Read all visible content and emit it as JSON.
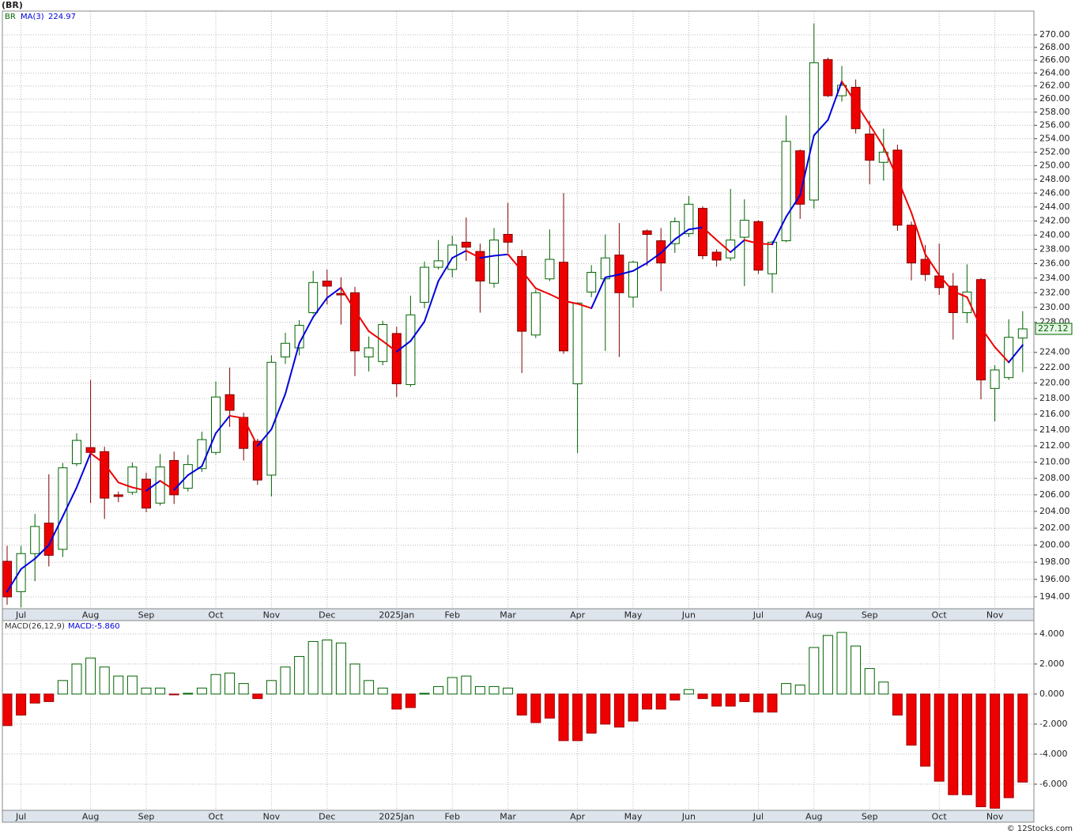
{
  "title": "(BR)",
  "footer": "© 12Stocks.com",
  "chart_data": [
    {
      "type": "candlestick",
      "symbol": "BR",
      "categories": [
        null,
        "Jul",
        null,
        null,
        null,
        null,
        "Aug",
        null,
        null,
        null,
        "Sep",
        null,
        null,
        null,
        null,
        "Oct",
        null,
        null,
        null,
        "Nov",
        null,
        null,
        null,
        "Dec",
        null,
        null,
        null,
        null,
        "2025Jan",
        null,
        null,
        null,
        "Feb",
        null,
        null,
        null,
        "Mar",
        null,
        null,
        null,
        null,
        "Apr",
        null,
        null,
        null,
        "May",
        null,
        null,
        null,
        "Jun",
        null,
        null,
        null,
        null,
        "Jul",
        null,
        null,
        null,
        "Aug",
        null,
        null,
        null,
        "Sep",
        null,
        null,
        null,
        null,
        "Oct",
        null,
        null,
        null,
        "Nov",
        null,
        null
      ],
      "open": [
        198.1,
        194.6,
        199.0,
        202.6,
        199.5,
        209.8,
        211.8,
        211.3,
        206.0,
        206.3,
        207.9,
        205.0,
        210.2,
        206.8,
        209.2,
        211.2,
        218.5,
        215.6,
        212.6,
        208.4,
        223.4,
        224.6,
        229.3,
        233.6,
        231.9,
        232.0,
        223.4,
        222.8,
        226.5,
        219.8,
        230.7,
        235.5,
        235.2,
        239.0,
        237.7,
        233.3,
        240.1,
        237.0,
        226.3,
        233.9,
        236.2,
        219.9,
        232.1,
        233.9,
        237.2,
        231.4,
        240.6,
        239.2,
        238.8,
        240.2,
        243.8,
        237.6,
        236.8,
        239.7,
        241.9,
        234.6,
        239.2,
        252.2,
        245.0,
        266.1,
        260.5,
        261.8,
        254.7,
        250.5,
        252.3,
        241.4,
        236.6,
        234.3,
        232.9,
        229.3,
        233.8,
        219.3,
        220.7,
        225.9
      ],
      "high": [
        199.9,
        199.9,
        203.7,
        208.5,
        209.9,
        213.6,
        220.4,
        211.9,
        206.4,
        209.95,
        208.7,
        211.0,
        211.3,
        210.9,
        213.8,
        220.2,
        222.0,
        216.2,
        212.9,
        223.6,
        226.6,
        228.3,
        235.0,
        235.2,
        234.1,
        232.8,
        226.1,
        228.2,
        227.4,
        231.6,
        236.3,
        239.3,
        239.9,
        242.5,
        238.8,
        241.0,
        244.6,
        237.9,
        232.4,
        240.8,
        246.0,
        230.7,
        235.8,
        240.1,
        241.7,
        236.4,
        240.8,
        241.0,
        242.5,
        245.6,
        244.1,
        238.0,
        246.6,
        245.1,
        242.1,
        239.2,
        257.5,
        252.4,
        271.8,
        266.4,
        265.1,
        263.0,
        256.7,
        255.5,
        253.1,
        241.9,
        238.6,
        238.8,
        234.7,
        235.9,
        234.0,
        222.3,
        228.4,
        229.5
      ],
      "low": [
        193.1,
        192.8,
        195.8,
        197.5,
        198.6,
        209.5,
        205.0,
        203.1,
        205.1,
        206.0,
        203.9,
        204.7,
        204.9,
        206.4,
        208.8,
        210.9,
        214.4,
        210.2,
        207.2,
        205.8,
        222.5,
        223.6,
        229.1,
        230.4,
        227.7,
        220.9,
        221.5,
        222.3,
        218.2,
        219.5,
        229.9,
        235.2,
        234.1,
        236.4,
        229.3,
        232.7,
        237.5,
        221.3,
        225.9,
        233.6,
        223.8,
        211.1,
        231.4,
        224.2,
        223.4,
        230.0,
        235.7,
        232.2,
        237.5,
        239.7,
        236.6,
        235.6,
        236.4,
        232.9,
        234.6,
        232.0,
        239.0,
        242.3,
        243.8,
        260.3,
        259.6,
        254.8,
        247.3,
        247.8,
        240.6,
        233.7,
        233.6,
        231.7,
        225.7,
        227.9,
        217.9,
        215.1,
        220.4,
        221.4
      ],
      "close": [
        194.0,
        199.0,
        202.2,
        198.8,
        209.3,
        212.7,
        211.2,
        205.6,
        205.8,
        209.4,
        204.4,
        209.4,
        206.0,
        209.7,
        212.8,
        218.2,
        216.5,
        211.7,
        207.8,
        222.7,
        225.2,
        227.6,
        233.4,
        232.9,
        231.7,
        224.2,
        224.6,
        227.7,
        219.9,
        229.0,
        235.5,
        236.4,
        238.6,
        238.3,
        233.6,
        239.3,
        239.0,
        226.8,
        232.0,
        236.6,
        224.2,
        230.6,
        234.8,
        236.8,
        232.0,
        236.2,
        240.1,
        236.1,
        241.9,
        244.4,
        237.1,
        236.5,
        239.3,
        242.1,
        235.1,
        239.0,
        253.6,
        244.4,
        265.6,
        260.5,
        262.1,
        255.5,
        250.8,
        252.0,
        241.4,
        236.1,
        234.5,
        232.7,
        229.3,
        232.1,
        220.4,
        221.7,
        226.0,
        227.12
      ],
      "up_color": "#006400",
      "down_color": "#ee0000",
      "ma": {
        "name": "MA(3)",
        "up_color": "#0000dd",
        "down_color": "#ee0000",
        "values": [
          194.6,
          197.2,
          198.4,
          200.0,
          203.4,
          206.9,
          211.1,
          209.8,
          207.5,
          206.9,
          206.5,
          207.7,
          206.6,
          208.4,
          209.5,
          213.6,
          215.8,
          215.5,
          212.0,
          214.1,
          218.6,
          225.2,
          228.7,
          231.3,
          232.7,
          229.6,
          226.8,
          225.5,
          224.1,
          225.5,
          228.1,
          233.6,
          236.8,
          237.8,
          236.8,
          237.1,
          237.3,
          235.0,
          232.6,
          231.8,
          230.9,
          230.5,
          229.9,
          234.1,
          234.5,
          235.0,
          236.1,
          237.5,
          239.4,
          240.8,
          241.1,
          239.3,
          237.6,
          239.3,
          238.8,
          238.7,
          242.6,
          245.7,
          254.5,
          256.8,
          262.7,
          259.4,
          256.1,
          252.8,
          248.1,
          243.2,
          237.3,
          234.4,
          232.2,
          231.4,
          227.3,
          224.7,
          222.7,
          224.97
        ]
      },
      "log_scale": true,
      "grid": true,
      "ylim": [
        192.65,
        273.8
      ],
      "yticks": [
        {
          "value": 194,
          "label": "194.00"
        },
        {
          "value": 196,
          "label": "196.00"
        },
        {
          "value": 198,
          "label": "198.00"
        },
        {
          "value": 200,
          "label": "200.00"
        },
        {
          "value": 202,
          "label": "202.00"
        },
        {
          "value": 204,
          "label": "204.00"
        },
        {
          "value": 206,
          "label": "206.00"
        },
        {
          "value": 208,
          "label": "208.00"
        },
        {
          "value": 210,
          "label": "210.00"
        },
        {
          "value": 212,
          "label": "212.00"
        },
        {
          "value": 214,
          "label": "214.00"
        },
        {
          "value": 216,
          "label": "216.00"
        },
        {
          "value": 218,
          "label": "218.00"
        },
        {
          "value": 220,
          "label": "220.00"
        },
        {
          "value": 222,
          "label": "222.00"
        },
        {
          "value": 224,
          "label": "224.00"
        },
        {
          "value": 228,
          "label": "228.00"
        },
        {
          "value": 230,
          "label": "230.00"
        },
        {
          "value": 232,
          "label": "232.00"
        },
        {
          "value": 234,
          "label": "234.00"
        },
        {
          "value": 236,
          "label": "236.00"
        },
        {
          "value": 238,
          "label": "238.00"
        },
        {
          "value": 240,
          "label": "240.00"
        },
        {
          "value": 242,
          "label": "242.00"
        },
        {
          "value": 244,
          "label": "244.00"
        },
        {
          "value": 246,
          "label": "246.00"
        },
        {
          "value": 248,
          "label": "248.00"
        },
        {
          "value": 250,
          "label": "250.00"
        },
        {
          "value": 252,
          "label": "252.00"
        },
        {
          "value": 254,
          "label": "254.00"
        },
        {
          "value": 256,
          "label": "256.00"
        },
        {
          "value": 258,
          "label": "258.00"
        },
        {
          "value": 260,
          "label": "260.00"
        },
        {
          "value": 262,
          "label": "262.00"
        },
        {
          "value": 264,
          "label": "264.00"
        },
        {
          "value": 266,
          "label": "266.00"
        },
        {
          "value": 268,
          "label": "268.00"
        },
        {
          "value": 270,
          "label": "270.00"
        }
      ]
    },
    {
      "type": "bar",
      "title": "MACD(26,12,9)",
      "current_label": "MACD:-5.860",
      "categories": [
        null,
        "Jul",
        null,
        null,
        null,
        null,
        "Aug",
        null,
        null,
        null,
        "Sep",
        null,
        null,
        null,
        null,
        "Oct",
        null,
        null,
        null,
        "Nov",
        null,
        null,
        null,
        "Dec",
        null,
        null,
        null,
        null,
        "2025Jan",
        null,
        null,
        null,
        "Feb",
        null,
        null,
        null,
        "Mar",
        null,
        null,
        null,
        null,
        "Apr",
        null,
        null,
        null,
        "May",
        null,
        null,
        null,
        "Jun",
        null,
        null,
        null,
        null,
        "Jul",
        null,
        null,
        null,
        "Aug",
        null,
        null,
        null,
        "Sep",
        null,
        null,
        null,
        null,
        "Oct",
        null,
        null,
        null,
        "Nov",
        null,
        null
      ],
      "values": [
        -2.1,
        -1.4,
        -0.6,
        -0.5,
        0.9,
        2.0,
        2.4,
        1.8,
        1.2,
        1.2,
        0.4,
        0.4,
        -0.05,
        0.05,
        0.4,
        1.3,
        1.4,
        0.7,
        -0.3,
        0.9,
        1.8,
        2.5,
        3.5,
        3.6,
        3.4,
        2.0,
        0.9,
        0.4,
        -1.0,
        -0.9,
        0.05,
        0.5,
        1.1,
        1.2,
        0.5,
        0.5,
        0.4,
        -1.4,
        -1.9,
        -1.6,
        -3.1,
        -3.1,
        -2.6,
        -2.0,
        -2.2,
        -1.8,
        -1.0,
        -1.0,
        -0.4,
        0.3,
        -0.3,
        -0.8,
        -0.8,
        -0.5,
        -1.2,
        -1.2,
        0.7,
        0.6,
        3.1,
        3.9,
        4.1,
        3.2,
        1.7,
        0.8,
        -1.4,
        -3.4,
        -4.8,
        -5.8,
        -6.7,
        -6.7,
        -7.5,
        -7.6,
        -6.9,
        -5.86
      ],
      "pos_color": "#006400",
      "neg_color": "#ee0000",
      "grid": true,
      "ylim": [
        -7.74,
        4.89
      ],
      "yticks": [
        {
          "value": -6,
          "label": "-6.000"
        },
        {
          "value": -4,
          "label": "-4.000"
        },
        {
          "value": -2,
          "label": "-2.000"
        },
        {
          "value": 0,
          "label": "0.000"
        },
        {
          "value": 2,
          "label": "2.000"
        },
        {
          "value": 4,
          "label": "4.000"
        }
      ]
    }
  ]
}
